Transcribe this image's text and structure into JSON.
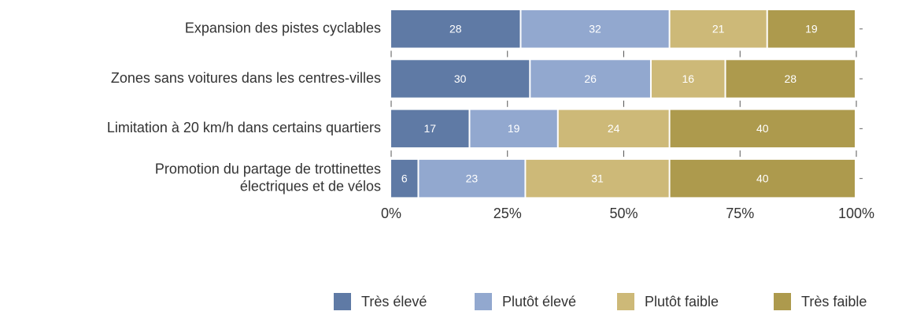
{
  "chart_data": {
    "type": "stacked-bar-horizontal",
    "categories": [
      "Expansion des pistes cyclables",
      "Zones sans voitures dans les centres-villes",
      "Limitation à 20 km/h dans certains quartiers",
      "Promotion du partage de trottinettes\nélectriques et de vélos"
    ],
    "series": [
      {
        "name": "Très élevé",
        "color": "#5f7aa5",
        "values": [
          28,
          30,
          17,
          6
        ]
      },
      {
        "name": "Plutôt élevé",
        "color": "#92a8cf",
        "values": [
          32,
          26,
          19,
          23
        ]
      },
      {
        "name": "Plutôt faible",
        "color": "#cdb978",
        "values": [
          21,
          16,
          24,
          31
        ]
      },
      {
        "name": "Très faible",
        "color": "#ad9a4d",
        "values": [
          19,
          28,
          40,
          40
        ]
      }
    ],
    "xlim": [
      0,
      100
    ],
    "xticks": [
      {
        "value": 0,
        "label": "0%"
      },
      {
        "value": 25,
        "label": "25%"
      },
      {
        "value": 50,
        "label": "50%"
      },
      {
        "value": 75,
        "label": "75%"
      },
      {
        "value": 100,
        "label": "100%"
      }
    ],
    "legend": "bottom-right"
  }
}
